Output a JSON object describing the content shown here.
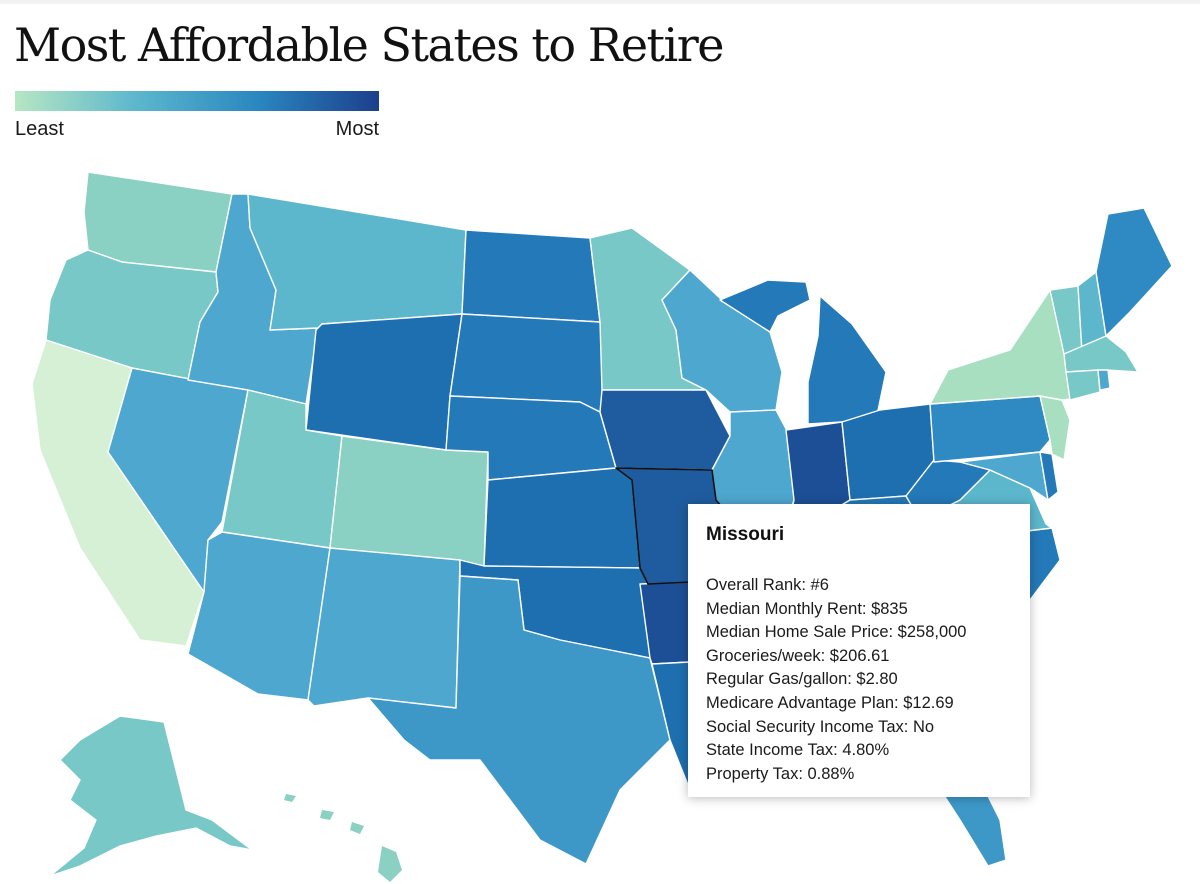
{
  "title": "Most Affordable States to Retire",
  "legend": {
    "low_label": "Least",
    "high_label": "Most",
    "colors": [
      "#b7e6c4",
      "#5cb7cd",
      "#2a87bf",
      "#1c3f8c"
    ]
  },
  "colors": {
    "tier1": "#d6f0d6",
    "tier2": "#a9dfc1",
    "tier3": "#8ad1c4",
    "tier4": "#77c8c6",
    "tier5": "#5cb7cd",
    "tier6": "#4ea7cf",
    "tier7": "#3d98c8",
    "tier8": "#2f89c2",
    "tier9": "#2479b8",
    "tier10": "#1d6fb0",
    "tier11": "#1f5c9f",
    "tier12": "#1d4f96",
    "tooltip_border": "#111111"
  },
  "selected_state": "Missouri",
  "tooltip": {
    "state": "Missouri",
    "rows": [
      "Overall Rank: #6",
      "Median Monthly Rent: $835",
      "Median Home Sale Price: $258,000",
      "Groceries/week: $206.61",
      "Regular Gas/gallon: $2.80",
      "Medicare Advantage Plan: $12.69",
      "Social Security Income Tax: No",
      "State Income Tax: 4.80%",
      "Property Tax: 0.88%"
    ]
  }
}
